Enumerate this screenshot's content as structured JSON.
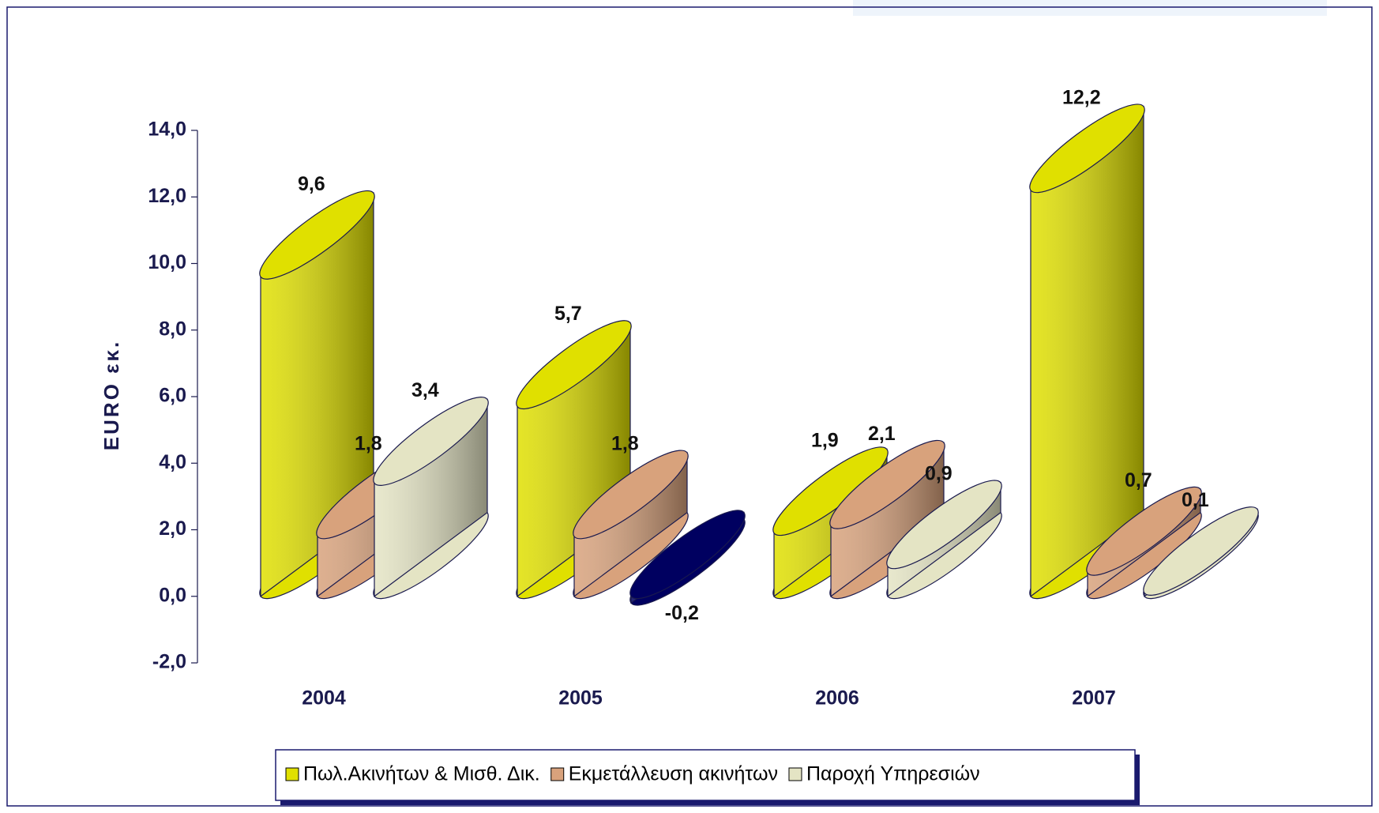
{
  "chart_data": {
    "type": "bar3d",
    "y_label": "EURO εκ.",
    "categories": [
      "2004",
      "2005",
      "2006",
      "2007"
    ],
    "series": [
      {
        "name": "Πωλ.Ακινήτων & Μισθ. Δικ.",
        "color": "#e0e000",
        "values": [
          9.6,
          5.7,
          1.9,
          12.2
        ],
        "value_labels": [
          "9,6",
          "5,7",
          "1,9",
          "12,2"
        ]
      },
      {
        "name": "Εκμετάλλευση ακινήτων",
        "color": "#d8a27c",
        "values": [
          1.8,
          1.8,
          2.1,
          0.7
        ],
        "value_labels": [
          "1,8",
          "1,8",
          "2,1",
          "0,7"
        ]
      },
      {
        "name": "Παροχή Υπηρεσιών",
        "color": "#e4e4c4",
        "values": [
          3.4,
          -0.2,
          0.9,
          0.1
        ],
        "value_labels": [
          "3,4",
          "-0,2",
          "0,9",
          "0,1"
        ]
      }
    ],
    "negative_color": "#000060",
    "ylim": [
      -2,
      14
    ],
    "yticks": [
      {
        "value": -2,
        "label": "-2,0"
      },
      {
        "value": 0,
        "label": "0,0"
      },
      {
        "value": 2,
        "label": "2,0"
      },
      {
        "value": 4,
        "label": "4,0"
      },
      {
        "value": 6,
        "label": "6,0"
      },
      {
        "value": 8,
        "label": "8,0"
      },
      {
        "value": 10,
        "label": "10,0"
      },
      {
        "value": 12,
        "label": "12,0"
      },
      {
        "value": 14,
        "label": "14,0"
      }
    ],
    "legend": "bottom"
  }
}
